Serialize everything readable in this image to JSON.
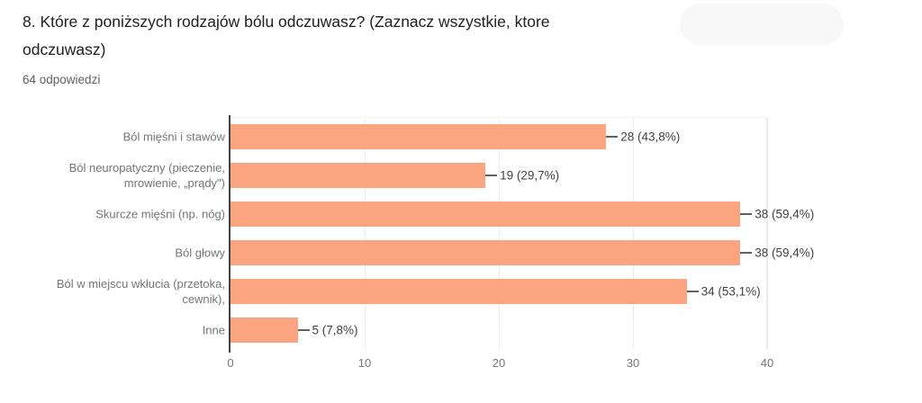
{
  "header": {
    "title": "8. Które z poniższych rodzajów bólu odczuwasz? (Zaznacz wszystkie, ktore\nodczuwasz)",
    "responses": "64 odpowiedzi"
  },
  "chart_data": {
    "type": "bar",
    "orientation": "horizontal",
    "title": "",
    "xlabel": "",
    "ylabel": "",
    "categories": [
      "Ból mięśni i stawów",
      "Ból neuropatyczny (pieczenie,\nmrowienie, „prądy\")",
      "Skurcze mięśni (np. nóg)",
      "Ból głowy",
      "Ból w miejscu wkłucia (przetoka,\ncewnik),",
      "Inne"
    ],
    "values": [
      28,
      19,
      38,
      38,
      34,
      5
    ],
    "value_labels": [
      "28 (43,8%)",
      "19 (29,7%)",
      "38 (59,4%)",
      "38 (59,4%)",
      "34 (53,1%)",
      "5 (7,8%)"
    ],
    "percentages": [
      43.8,
      29.7,
      59.4,
      59.4,
      53.1,
      7.8
    ],
    "x_ticks": [
      0,
      10,
      20,
      30,
      40
    ],
    "xlim": [
      0,
      40
    ],
    "grid": true,
    "legend": false,
    "colors": {
      "bar": "#fba480",
      "gridline": "#ececec",
      "axis_line": "#424242",
      "category_label": "#757575",
      "value_label": "#424242",
      "tick_label": "#757575",
      "title": "#212121",
      "subtitle": "#616161"
    }
  }
}
